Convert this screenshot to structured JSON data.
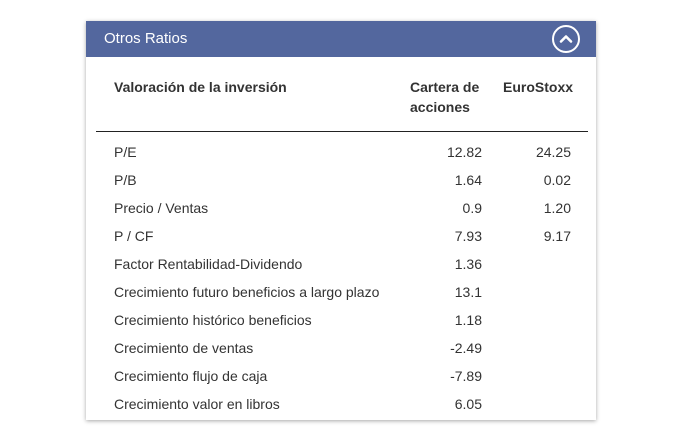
{
  "panel": {
    "title": "Otros Ratios",
    "collapse_icon": "chevron-up-icon"
  },
  "table": {
    "headers": {
      "label": "Valoración de la inversión",
      "portfolio_line1": "Cartera de",
      "portfolio_line2": "acciones",
      "benchmark": "EuroStoxx"
    },
    "rows": [
      {
        "label": "P/E",
        "portfolio": "12.82",
        "benchmark": "24.25"
      },
      {
        "label": "P/B",
        "portfolio": "1.64",
        "benchmark": "0.02"
      },
      {
        "label": "Precio / Ventas",
        "portfolio": "0.9",
        "benchmark": "1.20"
      },
      {
        "label": "P / CF",
        "portfolio": "7.93",
        "benchmark": "9.17"
      },
      {
        "label": "Factor Rentabilidad-Dividendo",
        "portfolio": "1.36",
        "benchmark": ""
      },
      {
        "label": "Crecimiento futuro beneficios a largo plazo",
        "portfolio": "13.1",
        "benchmark": ""
      },
      {
        "label": "Crecimiento histórico beneficios",
        "portfolio": "1.18",
        "benchmark": ""
      },
      {
        "label": "Crecimiento de ventas",
        "portfolio": "-2.49",
        "benchmark": ""
      },
      {
        "label": "Crecimiento flujo de caja",
        "portfolio": "-7.89",
        "benchmark": ""
      },
      {
        "label": "Crecimiento valor en libros",
        "portfolio": "6.05",
        "benchmark": ""
      }
    ]
  },
  "colors": {
    "header_bg": "#53679e",
    "header_text": "#ffffff",
    "text": "#333333"
  }
}
